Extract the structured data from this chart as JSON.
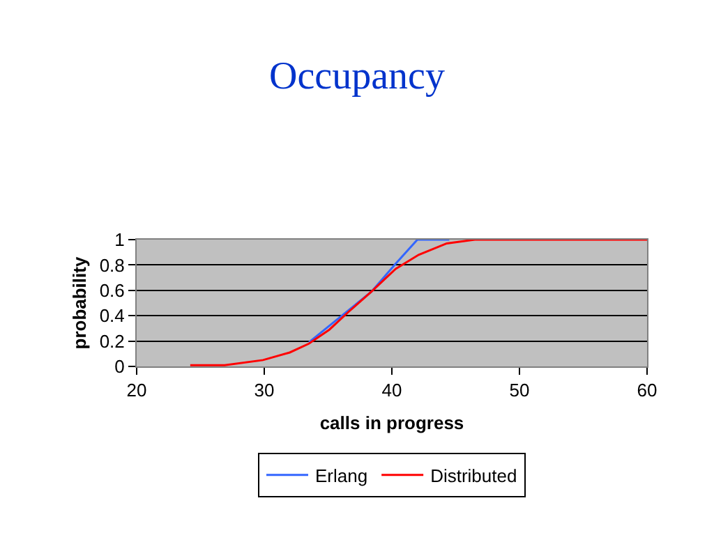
{
  "chart_data": {
    "type": "line",
    "title": "Occupancy",
    "xlabel": "calls in progress",
    "ylabel": "probability",
    "xlim": [
      20,
      60
    ],
    "xticks": [
      20,
      30,
      40,
      50,
      60
    ],
    "ylim": [
      0,
      1
    ],
    "yticks": [
      0,
      0.2,
      0.4,
      0.6,
      0.8,
      1
    ],
    "grid": "y",
    "legend": "bottom",
    "marker": "none",
    "line_style": "solid",
    "series": [
      {
        "name": "Erlang",
        "color": "#3366ff",
        "x": [
          33.5,
          38.4,
          40.3,
          42,
          44.5
        ],
        "values": [
          0.19,
          0.59,
          0.81,
          1,
          1
        ]
      },
      {
        "name": "Distributed",
        "color": "#ff0000",
        "x": [
          24.2,
          26.9,
          29.9,
          32,
          33.5,
          35.1,
          36.6,
          38.4,
          40.3,
          42.1,
          44.3,
          46.5,
          60
        ],
        "values": [
          0.01,
          0.01,
          0.05,
          0.11,
          0.18,
          0.29,
          0.43,
          0.59,
          0.77,
          0.88,
          0.97,
          1,
          1
        ]
      }
    ]
  }
}
